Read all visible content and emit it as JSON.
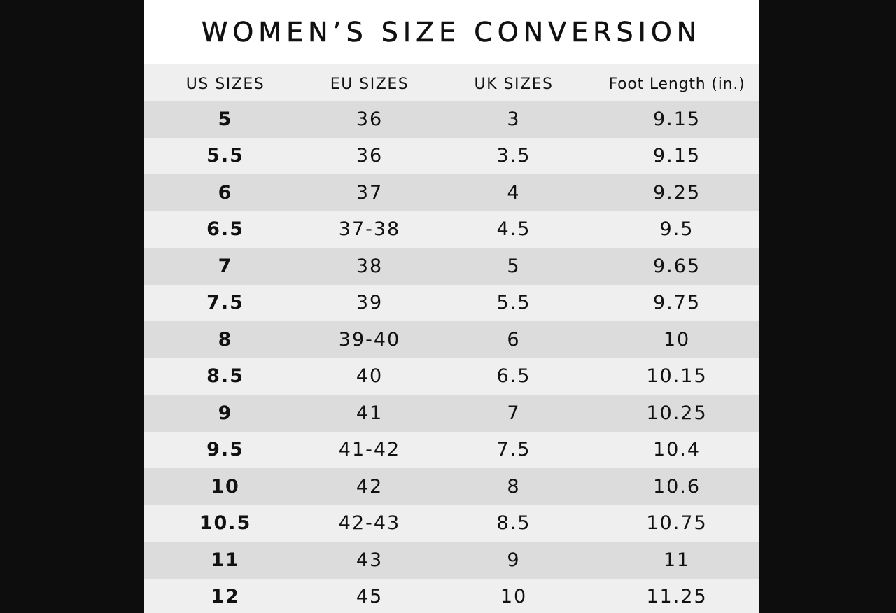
{
  "title": "WOMEN’S SIZE CONVERSION",
  "table": {
    "columns": [
      "US SIZES",
      "EU SIZES",
      "UK SIZES",
      "Foot Length (in.)"
    ],
    "rows": [
      [
        "5",
        "36",
        "3",
        "9.15"
      ],
      [
        "5.5",
        "36",
        "3.5",
        "9.15"
      ],
      [
        "6",
        "37",
        "4",
        "9.25"
      ],
      [
        "6.5",
        "37-38",
        "4.5",
        "9.5"
      ],
      [
        "7",
        "38",
        "5",
        "9.65"
      ],
      [
        "7.5",
        "39",
        "5.5",
        "9.75"
      ],
      [
        "8",
        "39-40",
        "6",
        "10"
      ],
      [
        "8.5",
        "40",
        "6.5",
        "10.15"
      ],
      [
        "9",
        "41",
        "7",
        "10.25"
      ],
      [
        "9.5",
        "41-42",
        "7.5",
        "10.4"
      ],
      [
        "10",
        "42",
        "8",
        "10.6"
      ],
      [
        "10.5",
        "42-43",
        "8.5",
        "10.75"
      ],
      [
        "11",
        "43",
        "9",
        "11"
      ],
      [
        "12",
        "45",
        "10",
        "11.25"
      ]
    ]
  },
  "colors": {
    "background": "#0d0d0d",
    "card": "#ffffff",
    "row_shaded": "#dcdcdc",
    "row_light": "#efefef",
    "text": "#111111"
  }
}
